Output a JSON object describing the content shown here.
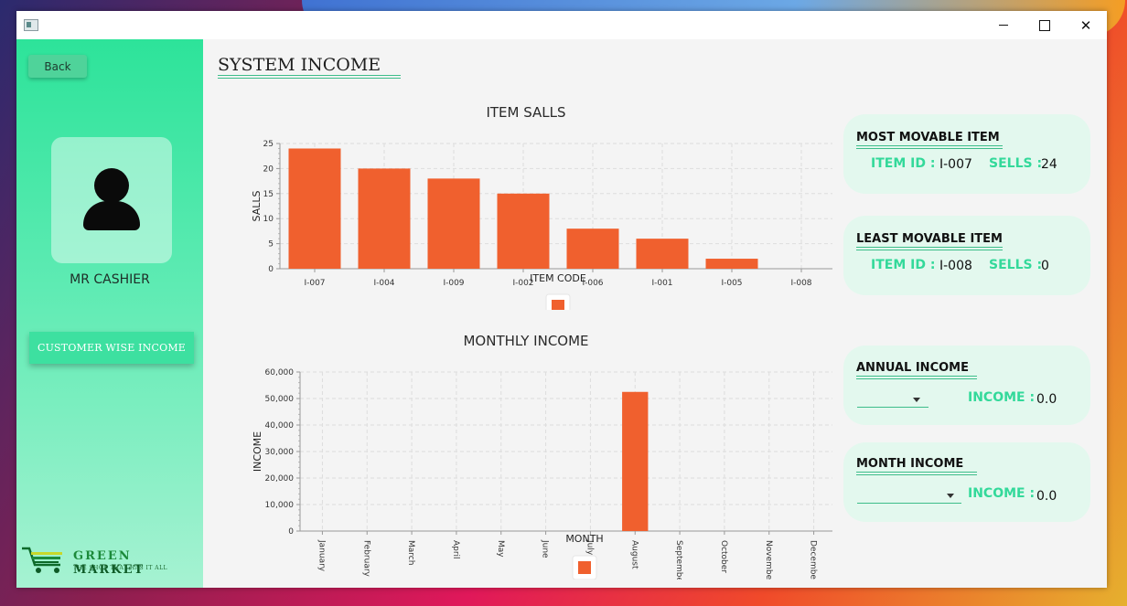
{
  "window": {
    "minimize_label": "",
    "maximize_label": "",
    "close_label": "✕"
  },
  "sidebar": {
    "back_label": "Back",
    "user_name": "MR CASHIER",
    "customer_wise_label": "CUSTOMER WISE INCOME",
    "logo_name_green": "GREEN",
    "logo_name_market": "MARKET",
    "logo_tagline": "THE SHOP THAT HAS IT ALL"
  },
  "page_title": "SYSTEM INCOME",
  "chart_data": [
    {
      "type": "bar",
      "title": "ITEM SALLS",
      "xlabel": "ITEM CODE",
      "ylabel": "SALLS",
      "categories": [
        "I-007",
        "I-004",
        "I-009",
        "I-002",
        "I-006",
        "I-001",
        "I-005",
        "I-008"
      ],
      "values": [
        24,
        20,
        18,
        15,
        8,
        6,
        2,
        0
      ],
      "ylim": [
        0,
        25
      ],
      "yticks": [
        0,
        5,
        10,
        15,
        20,
        25
      ],
      "color": "#f0602e",
      "grid": true,
      "legend": "bottom"
    },
    {
      "type": "bar",
      "title": "MONTHLY INCOME",
      "xlabel": "MONTH",
      "ylabel": "INCOME",
      "categories": [
        "January",
        "February",
        "March",
        "April",
        "May",
        "June",
        "July",
        "August",
        "September",
        "October",
        "November",
        "December"
      ],
      "values": [
        0,
        0,
        0,
        0,
        0,
        0,
        0,
        52500,
        0,
        0,
        0,
        0
      ],
      "ylim": [
        0,
        60000
      ],
      "yticks": [
        "0",
        "10,000",
        "20,000",
        "30,000",
        "40,000",
        "50,000",
        "60,000"
      ],
      "color": "#f0602e",
      "grid": true,
      "legend": "bottom"
    }
  ],
  "most_movable": {
    "heading": "MOST MOVABLE ITEM",
    "item_id_label": "ITEM ID :",
    "item_id": "I-007",
    "sells_label": "SELLS :",
    "sells": "24"
  },
  "least_movable": {
    "heading": "LEAST MOVABLE ITEM",
    "item_id_label": "ITEM ID :",
    "item_id": "I-008",
    "sells_label": "SELLS :",
    "sells": "0"
  },
  "annual_income": {
    "heading": "ANNUAL INCOME",
    "income_label": "INCOME :",
    "income": "0.0",
    "selected": ""
  },
  "month_income": {
    "heading": "MONTH INCOME",
    "income_label": "INCOME :",
    "income": "0.0",
    "selected": ""
  },
  "colors": {
    "accent_green": "#33d99a",
    "bar": "#f0602e"
  }
}
